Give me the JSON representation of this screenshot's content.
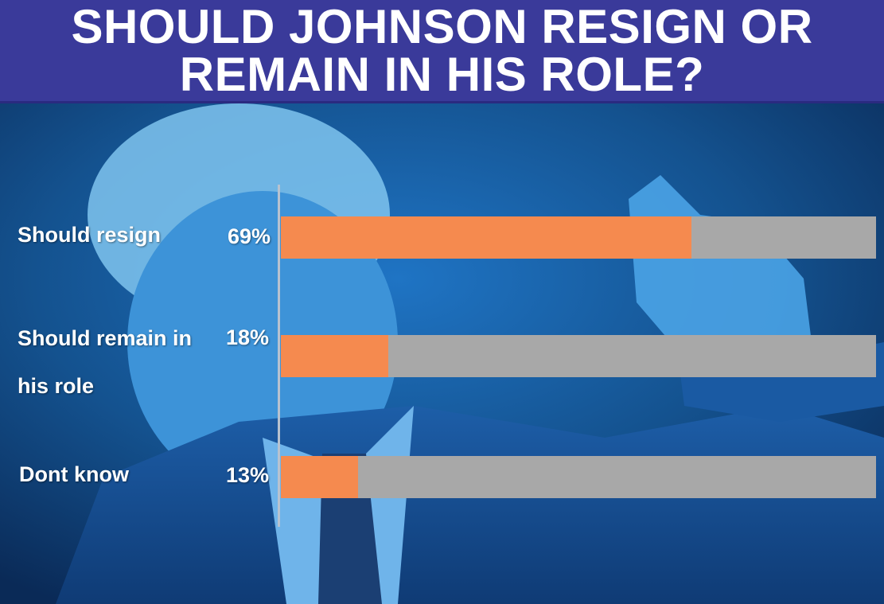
{
  "header": {
    "title": "SHOULD JOHNSON RESIGN OR REMAIN IN HIS ROLE?"
  },
  "colors": {
    "header_bg": "#3a3a9a",
    "bar_fill": "#f58a4f",
    "bar_track": "#a8a8a8",
    "photo_tint": "#1f74c4"
  },
  "chart_data": {
    "type": "bar",
    "orientation": "horizontal",
    "title": "SHOULD JOHNSON RESIGN OR REMAIN IN HIS ROLE?",
    "categories": [
      "Should resign",
      "Should remain in his role",
      "Dont know"
    ],
    "values": [
      69,
      18,
      13
    ],
    "value_labels": [
      "69%",
      "18%",
      "13%"
    ],
    "xlim": [
      0,
      100
    ],
    "unit": "%",
    "grid": false,
    "legend": "none"
  }
}
